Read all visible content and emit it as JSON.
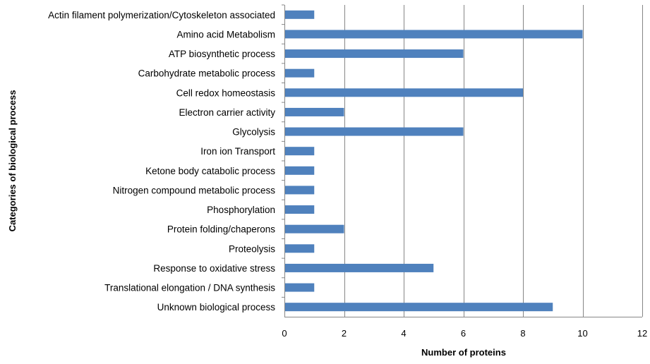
{
  "chart_data": {
    "type": "bar",
    "orientation": "horizontal",
    "categories": [
      "Actin filament polymerization/Cytoskeleton associated",
      "Amino acid Metabolism",
      "ATP biosynthetic process",
      "Carbohydrate metabolic process",
      "Cell redox homeostasis",
      "Electron carrier activity",
      "Glycolysis",
      "Iron ion Transport",
      "Ketone body catabolic process",
      "Nitrogen compound metabolic process",
      "Phosphorylation",
      "Protein folding/chaperons",
      "Proteolysis",
      "Response to oxidative stress",
      "Translational elongation / DNA synthesis",
      "Unknown biological process"
    ],
    "values": [
      1,
      10,
      6,
      1,
      8,
      2,
      6,
      1,
      1,
      1,
      1,
      2,
      1,
      5,
      1,
      9
    ],
    "xlabel": "Number of proteins",
    "ylabel": "Categories of biological process",
    "xlim": [
      0,
      12
    ],
    "xticks": [
      0,
      2,
      4,
      6,
      8,
      10,
      12
    ],
    "grid": "vertical",
    "bar_color": "#4f81bd"
  }
}
